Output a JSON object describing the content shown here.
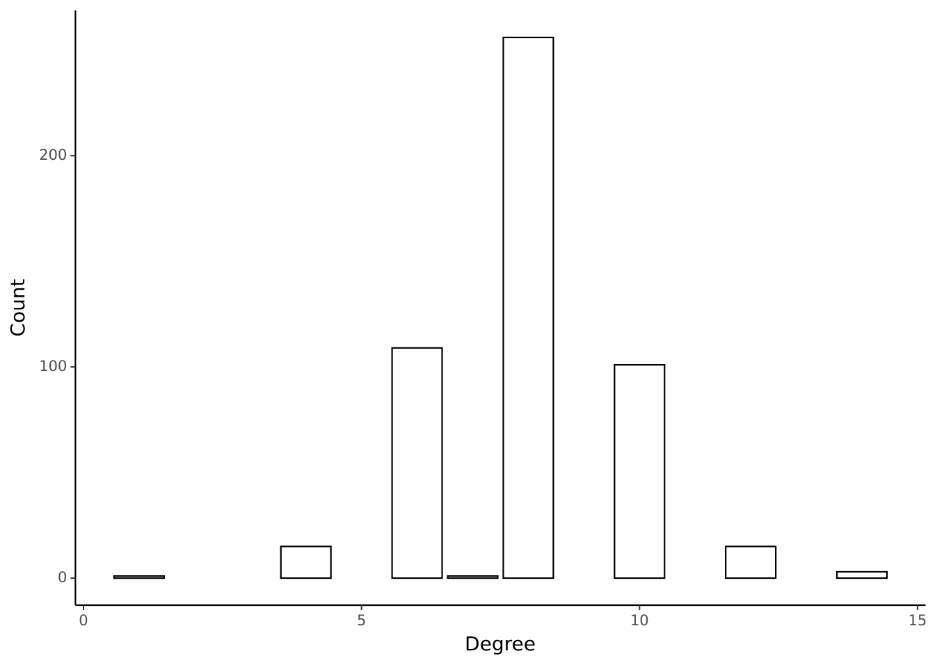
{
  "chart_data": {
    "type": "bar",
    "x_label": "Degree",
    "y_label": "Count",
    "x": [
      1,
      4,
      6,
      7,
      8,
      10,
      12,
      14
    ],
    "values": [
      1,
      15,
      109,
      1,
      256,
      101,
      15,
      3
    ],
    "bar_width": 0.9,
    "color": "#ffffff",
    "edge_color": "#000000",
    "xlim": [
      -0.145,
      15.145
    ],
    "xticks": [
      0,
      5,
      10,
      15
    ],
    "ylim": [
      -12.8,
      268.8
    ],
    "yticks": [
      0,
      100,
      200
    ],
    "grid": false
  }
}
